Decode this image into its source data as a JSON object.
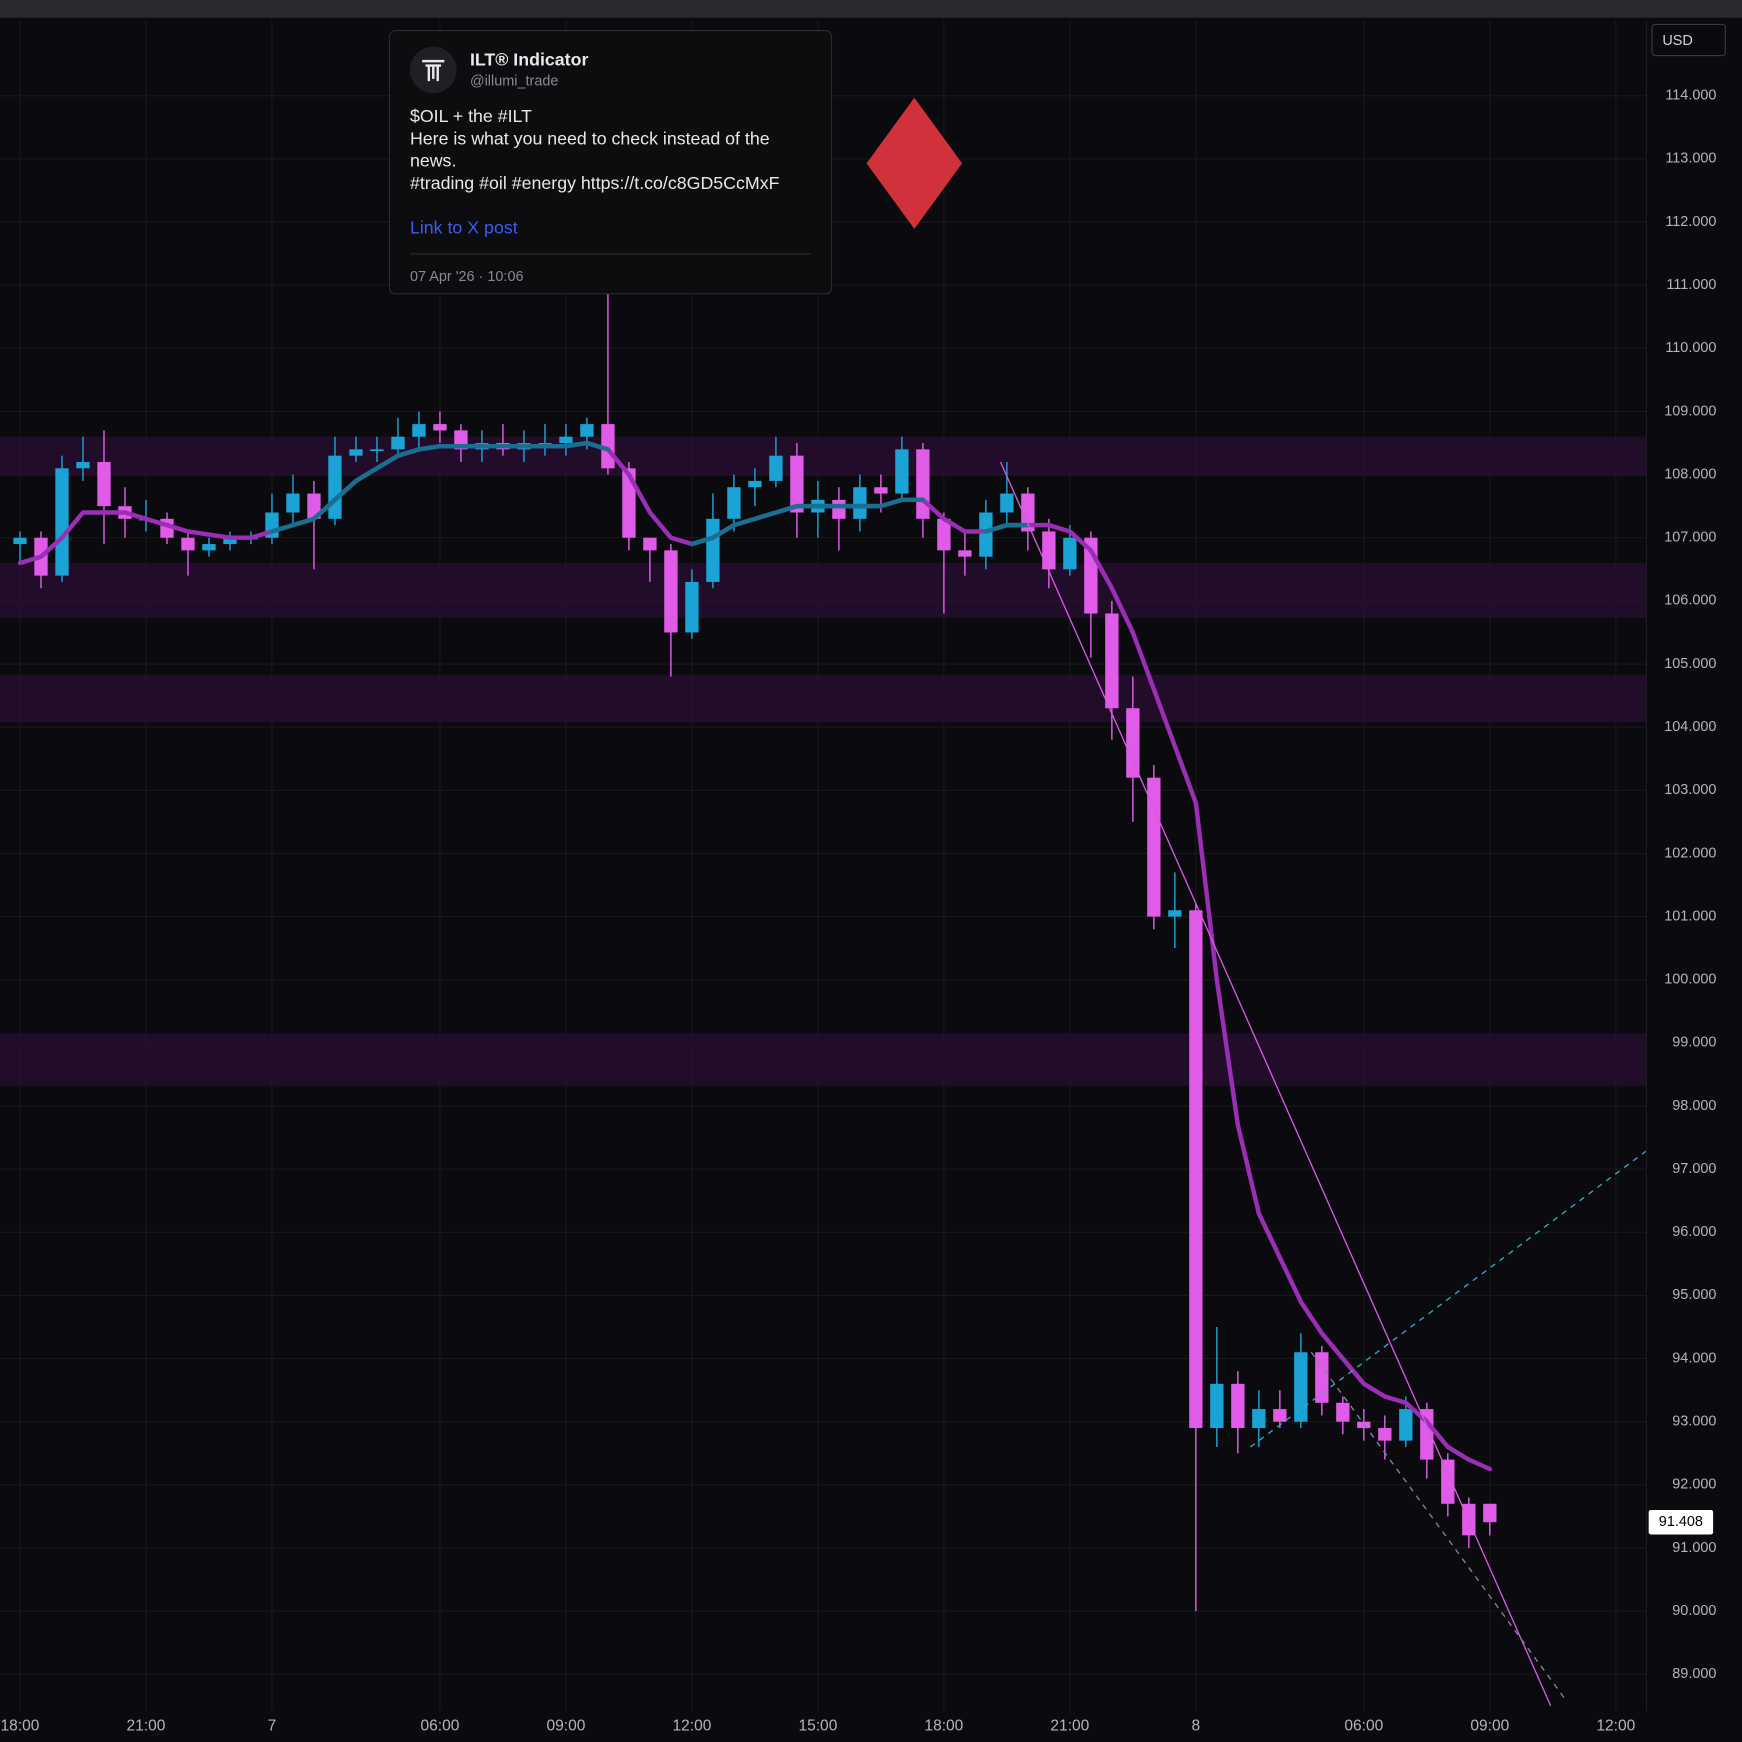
{
  "chart_data": {
    "type": "candlestick",
    "categories": [
      "18:00",
      null,
      null,
      null,
      null,
      null,
      "21:00",
      null,
      null,
      null,
      null,
      null,
      "7",
      null,
      null,
      null,
      null,
      null,
      null,
      null,
      "06:00",
      null,
      null,
      null,
      null,
      null,
      "09:00",
      null,
      null,
      null,
      null,
      null,
      "12:00",
      null,
      null,
      null,
      null,
      null,
      "15:00",
      null,
      null,
      null,
      null,
      null,
      "18:00",
      null,
      null,
      null,
      null,
      null,
      "21:00",
      null,
      null,
      null,
      null,
      null,
      "8",
      null,
      null,
      null,
      null,
      null,
      null,
      null,
      "06:00",
      null,
      null,
      null,
      null,
      null,
      "09:00",
      null,
      null,
      null,
      null,
      null,
      "12:00",
      null
    ],
    "open": [
      106.9,
      107.0,
      106.4,
      108.1,
      108.2,
      107.5,
      107.3,
      107.3,
      107.0,
      106.8,
      106.9,
      107.0,
      107.0,
      107.4,
      107.7,
      107.3,
      108.3,
      108.4,
      108.4,
      108.6,
      108.8,
      108.7,
      108.4,
      108.5,
      108.4,
      108.5,
      108.5,
      108.6,
      108.8,
      108.1,
      107.0,
      106.8,
      105.5,
      106.3,
      107.3,
      107.8,
      107.9,
      108.3,
      107.4,
      107.6,
      107.3,
      107.8,
      107.7,
      108.4,
      107.3,
      106.8,
      106.7,
      107.4,
      107.7,
      107.1,
      106.5,
      107.0,
      105.8,
      104.3,
      103.2,
      101.0,
      101.1,
      92.9,
      93.6,
      92.9,
      93.2,
      93.0,
      94.1,
      93.3,
      93.0,
      92.9,
      92.7,
      93.2,
      92.4,
      91.7,
      91.7,
      null,
      null,
      null,
      null,
      null,
      null,
      null
    ],
    "high": [
      107.1,
      107.1,
      108.3,
      108.6,
      108.7,
      107.8,
      107.6,
      107.4,
      107.1,
      107.0,
      107.1,
      107.1,
      107.7,
      108.0,
      107.9,
      108.6,
      108.6,
      108.6,
      108.9,
      109.0,
      109.0,
      108.8,
      108.7,
      108.8,
      108.7,
      108.8,
      108.8,
      108.9,
      110.9,
      108.2,
      107.0,
      106.9,
      106.5,
      107.7,
      108.0,
      108.1,
      108.6,
      108.5,
      107.9,
      107.8,
      108.0,
      108.0,
      108.6,
      108.5,
      107.4,
      107.1,
      107.6,
      108.2,
      107.8,
      107.3,
      107.2,
      107.1,
      106.0,
      104.8,
      103.4,
      101.7,
      101.2,
      94.5,
      93.8,
      93.5,
      93.5,
      94.4,
      94.2,
      93.4,
      93.2,
      93.1,
      93.4,
      93.3,
      92.5,
      91.8,
      91.7,
      null,
      null,
      null,
      null,
      null,
      null,
      null
    ],
    "low": [
      106.6,
      106.2,
      106.3,
      107.9,
      106.9,
      107.0,
      107.1,
      106.9,
      106.4,
      106.7,
      106.8,
      106.9,
      106.9,
      107.2,
      106.5,
      107.2,
      108.2,
      108.2,
      108.3,
      108.4,
      108.5,
      108.2,
      108.2,
      108.3,
      108.2,
      108.3,
      108.3,
      108.4,
      108.0,
      106.8,
      106.3,
      104.8,
      105.4,
      106.2,
      107.1,
      107.5,
      107.8,
      107.0,
      107.0,
      106.8,
      107.1,
      107.4,
      107.6,
      107.0,
      105.8,
      106.4,
      106.5,
      107.2,
      106.8,
      106.2,
      106.4,
      105.1,
      103.8,
      102.5,
      100.8,
      100.5,
      90.0,
      92.6,
      92.5,
      92.6,
      92.9,
      92.9,
      93.1,
      92.8,
      92.7,
      92.4,
      92.6,
      92.1,
      91.5,
      91.0,
      91.2,
      null,
      null,
      null,
      null,
      null,
      null,
      null
    ],
    "close": [
      107.0,
      106.4,
      108.1,
      108.2,
      107.5,
      107.3,
      107.3,
      107.0,
      106.8,
      106.9,
      107.0,
      107.0,
      107.4,
      107.7,
      107.3,
      108.3,
      108.4,
      108.4,
      108.6,
      108.8,
      108.7,
      108.4,
      108.5,
      108.4,
      108.5,
      108.5,
      108.6,
      108.8,
      108.1,
      107.0,
      106.8,
      105.5,
      106.3,
      107.3,
      107.8,
      107.9,
      108.3,
      107.4,
      107.6,
      107.3,
      107.8,
      107.7,
      108.4,
      107.3,
      106.8,
      106.7,
      107.4,
      107.7,
      107.1,
      106.5,
      107.0,
      105.8,
      104.3,
      103.2,
      101.0,
      101.1,
      92.9,
      93.6,
      92.9,
      93.2,
      93.0,
      94.1,
      93.3,
      93.0,
      92.9,
      92.7,
      93.2,
      92.4,
      91.7,
      91.2,
      91.408,
      null,
      null,
      null,
      null,
      null,
      null,
      null
    ],
    "up_color": "#1aa3d4",
    "down_color": "#e05ce8",
    "ma_lines": [
      {
        "color": "#9a2fb5",
        "values": [
          106.6,
          106.7,
          107.0,
          107.4,
          107.4,
          107.4,
          107.3,
          107.2,
          107.1,
          107.05,
          107.0,
          107.0,
          107.1,
          107.2,
          107.3,
          107.6,
          107.9,
          108.1,
          108.3,
          108.4,
          108.45,
          108.45,
          108.45,
          108.45,
          108.45,
          108.45,
          108.45,
          108.5,
          108.4,
          108.0,
          107.4,
          107.0,
          106.9,
          107.0,
          107.2,
          107.3,
          107.4,
          107.5,
          107.5,
          107.5,
          107.5,
          107.5,
          107.6,
          107.6,
          107.3,
          107.1,
          107.1,
          107.2,
          107.2,
          107.2,
          107.1,
          106.8,
          106.2,
          105.5,
          104.6,
          103.7,
          102.8,
          100.0,
          97.7,
          96.3,
          95.6,
          94.9,
          94.4,
          94.0,
          93.6,
          93.4,
          93.3,
          93.0,
          92.6,
          92.4,
          92.25,
          null,
          null,
          null,
          null,
          null,
          null,
          null
        ]
      },
      {
        "color": "#17708f",
        "values": [
          null,
          null,
          null,
          null,
          null,
          null,
          null,
          null,
          null,
          null,
          null,
          null,
          107.1,
          107.2,
          107.3,
          107.6,
          107.9,
          108.1,
          108.3,
          108.4,
          108.45,
          108.45,
          108.45,
          108.45,
          108.45,
          108.45,
          108.45,
          108.5,
          108.4,
          null,
          null,
          null,
          106.9,
          107.0,
          107.2,
          107.3,
          107.4,
          107.5,
          107.5,
          107.5,
          107.5,
          107.5,
          107.6,
          107.6,
          null,
          null,
          107.1,
          107.2,
          107.2,
          null,
          null,
          null,
          null,
          null,
          null,
          null,
          null,
          null,
          null,
          null,
          null,
          null,
          null,
          null,
          null,
          null,
          null,
          null,
          null,
          null,
          null,
          null,
          null,
          null,
          null,
          null,
          null,
          null
        ]
      }
    ],
    "zones": [
      [
        107.98,
        108.6
      ],
      [
        105.73,
        106.6
      ],
      [
        104.08,
        104.83
      ],
      [
        98.32,
        99.15
      ]
    ],
    "zone_color": "#2a0f33",
    "trend_lines": [
      {
        "x": [
          46.7,
          72.9
        ],
        "y": [
          108.2,
          88.5
        ],
        "color": "#d55ae0",
        "dash": false
      },
      {
        "x": [
          58.6,
          77.5
        ],
        "y": [
          92.6,
          97.3
        ],
        "color": "#3aa6c8",
        "dash": true
      },
      {
        "x": [
          61.5,
          73.6
        ],
        "y": [
          94.1,
          88.6
        ],
        "color": "#7a8a9a",
        "dash": true
      }
    ],
    "ylim": [
      88.42,
      115.2
    ],
    "yticks": [
      {
        "value": 89,
        "label": "89.000"
      },
      {
        "value": 90,
        "label": "90.000"
      },
      {
        "value": 91,
        "label": "91.000"
      },
      {
        "value": 92,
        "label": "92.000"
      },
      {
        "value": 93,
        "label": "93.000"
      },
      {
        "value": 94,
        "label": "94.000"
      },
      {
        "value": 95,
        "label": "95.000"
      },
      {
        "value": 96,
        "label": "96.000"
      },
      {
        "value": 97,
        "label": "97.000"
      },
      {
        "value": 98,
        "label": "98.000"
      },
      {
        "value": 99,
        "label": "99.000"
      },
      {
        "value": 100,
        "label": "100.000"
      },
      {
        "value": 101,
        "label": "101.000"
      },
      {
        "value": 102,
        "label": "102.000"
      },
      {
        "value": 103,
        "label": "103.000"
      },
      {
        "value": 104,
        "label": "104.000"
      },
      {
        "value": 105,
        "label": "105.000"
      },
      {
        "value": 106,
        "label": "106.000"
      },
      {
        "value": 107,
        "label": "107.000"
      },
      {
        "value": 108,
        "label": "108.000"
      },
      {
        "value": 109,
        "label": "109.000"
      },
      {
        "value": 110,
        "label": "110.000"
      },
      {
        "value": 111,
        "label": "111.000"
      },
      {
        "value": 112,
        "label": "112.000"
      },
      {
        "value": 113,
        "label": "113.000"
      },
      {
        "value": 114,
        "label": "114.000"
      }
    ],
    "grid": true,
    "currency": "USD"
  },
  "post": {
    "name": "ILT® Indicator",
    "handle": "@illumi_trade",
    "lines": [
      "$OIL + the #ILT",
      "Here is what you need to check instead of the news.",
      "#trading #oil #energy https://t.co/c8GD5CcMxF"
    ],
    "link": "Link to X post",
    "date": "07 Apr '26 · 10:06"
  }
}
